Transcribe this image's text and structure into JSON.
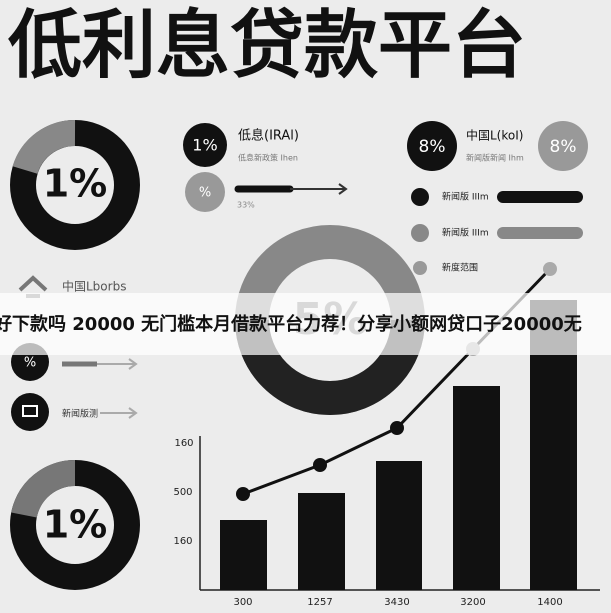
{
  "header": {
    "title": "低利息贷款平台"
  },
  "banner": {
    "text": "好下款吗 20000 无门槛本月借款平台力荐！分享小额网贷口子20000无"
  },
  "donuts": [
    {
      "label": "1%"
    },
    {
      "label": "5%"
    },
    {
      "label": "1%"
    }
  ],
  "stats": [
    {
      "badge": "1%",
      "title": "低息(IRAl)",
      "subtitle": "低息新政策 Ihen"
    },
    {
      "badge": "%",
      "subtitle": "33%"
    },
    {
      "badge": "8%",
      "title": "中国L(koI)",
      "subtitle": "新闻版新闻 Ihm",
      "side_badge": "8%"
    }
  ],
  "list": [
    {
      "label": "新闻版 IIIm"
    },
    {
      "label": "新闻版 IIIm"
    },
    {
      "label": "新度范围"
    }
  ],
  "left_items": {
    "title": "中国Lborbs",
    "badge": "%",
    "item": "新闻版测"
  },
  "axis": {
    "y_labels": [
      "160",
      "500",
      "160"
    ],
    "x_labels": [
      "300",
      "1257",
      "3430",
      "3200",
      "1400"
    ]
  }
}
